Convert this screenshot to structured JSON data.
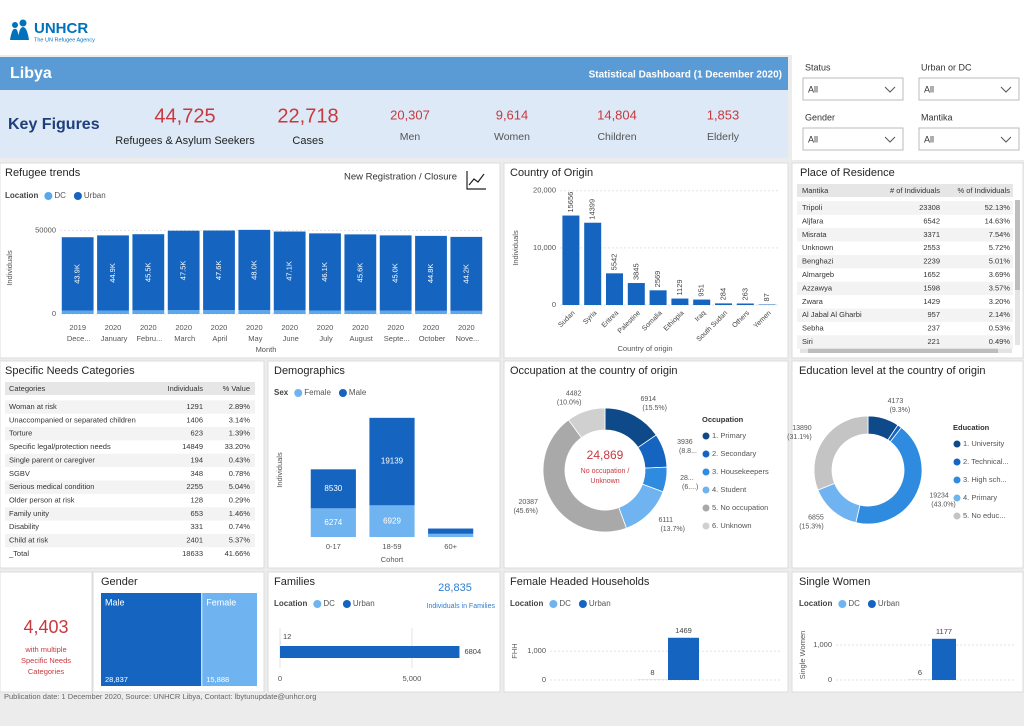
{
  "header": {
    "logo": "UNHCR",
    "logo_sub": "The UN Refugee Agency",
    "country": "Libya",
    "dashboard_title": "Statistical Dashboard (1 December 2020)"
  },
  "key_figures": {
    "title": "Key Figures",
    "items": [
      {
        "value": "44,725",
        "label": "Refugees & Asylum Seekers"
      },
      {
        "value": "22,718",
        "label": "Cases"
      },
      {
        "value": "20,307",
        "label": "Men"
      },
      {
        "value": "9,614",
        "label": "Women"
      },
      {
        "value": "14,804",
        "label": "Children"
      },
      {
        "value": "1,853",
        "label": "Elderly"
      }
    ]
  },
  "filters": [
    {
      "label": "Status",
      "value": "All"
    },
    {
      "label": "Urban or DC",
      "value": "All"
    },
    {
      "label": "Gender",
      "value": "All"
    },
    {
      "label": "Mantika",
      "value": "All"
    }
  ],
  "residence_table": {
    "columns": [
      "Mantika",
      "# of Individuals",
      "% of Individuals"
    ],
    "rows": [
      [
        "Tripoli",
        "23308",
        "52.13%"
      ],
      [
        "Aljfara",
        "6542",
        "14.63%"
      ],
      [
        "Misrata",
        "3371",
        "7.54%"
      ],
      [
        "Unknown",
        "2553",
        "5.72%"
      ],
      [
        "Benghazi",
        "2239",
        "5.01%"
      ],
      [
        "Almargeb",
        "1652",
        "3.69%"
      ],
      [
        "Azzawya",
        "1598",
        "3.57%"
      ],
      [
        "Zwara",
        "1429",
        "3.20%"
      ],
      [
        "Al Jabal Al Gharbi",
        "957",
        "2.14%"
      ],
      [
        "Sebha",
        "237",
        "0.53%"
      ],
      [
        "Siri",
        "221",
        "0.49%"
      ]
    ]
  },
  "needs_table": {
    "title": "Specific Needs Categories",
    "columns": [
      "Categories",
      "Individuals",
      "% Value"
    ],
    "rows": [
      [
        "Woman at risk",
        "1291",
        "2.89%"
      ],
      [
        "Unaccompanied or separated children",
        "1406",
        "3.14%"
      ],
      [
        "Torture",
        "623",
        "1.39%"
      ],
      [
        "Specific legal/protection needs",
        "14849",
        "33.20%"
      ],
      [
        "Single parent or caregiver",
        "194",
        "0.43%"
      ],
      [
        "SGBV",
        "348",
        "0.78%"
      ],
      [
        "Serious medical condition",
        "2255",
        "5.04%"
      ],
      [
        "Older person at risk",
        "128",
        "0.29%"
      ],
      [
        "Family unity",
        "653",
        "1.46%"
      ],
      [
        "Disability",
        "331",
        "0.74%"
      ],
      [
        "Child at risk",
        "2401",
        "5.37%"
      ],
      [
        "_Total",
        "18633",
        "41.66%"
      ]
    ]
  },
  "residence_title": "Place of Residence",
  "multiple_needs": {
    "value": "4,403",
    "label_lines": [
      "with multiple",
      "Specific Needs",
      "Categories"
    ]
  },
  "footer": "Publication date: 1 December 2020, Source: UNHCR Libya, Contact: lbytunupdate@unhcr.org",
  "chart_data": [
    {
      "type": "bar",
      "stacked": true,
      "title": "Refugee trends",
      "subtitle": "New Registration / Closure",
      "legend_title": "Location",
      "xlabel": "Month",
      "ylabel": "Individuals",
      "categories": [
        "2019 Dece...",
        "2020 January",
        "2020 Febru...",
        "2020 March",
        "2020 April",
        "2020 May",
        "2020 June",
        "2020 July",
        "2020 August",
        "2020 Septe...",
        "2020 October",
        "2020 Nove..."
      ],
      "series": [
        {
          "name": "DC",
          "color": "#5aa7ee",
          "values": [
            2000,
            2100,
            2200,
            2300,
            2300,
            2300,
            2200,
            2100,
            2000,
            2000,
            1900,
            1900
          ]
        },
        {
          "name": "Urban",
          "color": "#1565c0",
          "values": [
            43900,
            44900,
            45500,
            47500,
            47600,
            48000,
            47100,
            46100,
            45600,
            45000,
            44800,
            44200
          ],
          "value_labels": [
            "43.9K",
            "44.9K",
            "45.5K",
            "47.5K",
            "47.6K",
            "48.0K",
            "47.1K",
            "46.1K",
            "45.6K",
            "45.0K",
            "44.8K",
            "44.2K"
          ]
        }
      ],
      "ylim": [
        0,
        55000
      ],
      "yticks": [
        0,
        50000
      ],
      "grid": true
    },
    {
      "type": "bar",
      "title": "Country of Origin",
      "xlabel": "Country of origin",
      "ylabel": "Individuals",
      "categories": [
        "Sudan",
        "Syria",
        "Eritrea",
        "Palestine",
        "Somalia",
        "Ethiopia",
        "Iraq",
        "South Sudan",
        "Others",
        "Yemen"
      ],
      "values": [
        15656,
        14399,
        5542,
        3845,
        2569,
        1129,
        951,
        284,
        263,
        87
      ],
      "color": "#1565c0",
      "ylim": [
        0,
        21000
      ],
      "yticks": [
        0,
        {
          "value": 10000,
          "label": "10,000"
        },
        {
          "value": 20000,
          "label": "20,000"
        }
      ],
      "grid": true
    },
    {
      "type": "bar",
      "stacked": true,
      "title": "Demographics",
      "legend_title": "Sex",
      "xlabel": "Cohort",
      "ylabel": "Individuals",
      "categories": [
        "0-17",
        "18-59",
        "60+"
      ],
      "series": [
        {
          "name": "Female",
          "color": "#6fb4f0",
          "values": [
            6274,
            6929,
            700
          ]
        },
        {
          "name": "Male",
          "color": "#1565c0",
          "values": [
            8530,
            19139,
            1153
          ]
        }
      ],
      "ylim": [
        0,
        28000
      ]
    },
    {
      "type": "donut",
      "title": "Occupation at the country of origin",
      "legend_title": "Occupation",
      "categories": [
        "1. Primary",
        "2. Secondary",
        "3. Housekeepers",
        "4. Student",
        "5. No occupation",
        "6. Unknown"
      ],
      "values": [
        6914,
        3936,
        2895,
        6111,
        20387,
        4482
      ],
      "value_labels": [
        "6914 (15.5%)",
        "3936 (8.8...",
        "28... (6....)",
        "6111 (13.7%)",
        "20387 (45.6%)",
        "4482 (10.0%)"
      ],
      "colors": [
        "#0e4a8a",
        "#1565c0",
        "#2f8be0",
        "#6fb4f0",
        "#a9a9a9",
        "#d0d0d0"
      ],
      "center_value": "24,869",
      "center_label": [
        "No occupation /",
        "Unknown"
      ]
    },
    {
      "type": "donut",
      "title": "Education level at the country of origin",
      "legend_title": "Education",
      "categories": [
        "1. University",
        "2. Technical...",
        "3. High sch...",
        "4. Primary",
        "5. No educ..."
      ],
      "values": [
        4173,
        573,
        19234,
        6855,
        13890
      ],
      "value_labels": [
        "4173 (9.3%)",
        null,
        "19234 (43.0%)",
        "6855 (15.3%)",
        "13890 (31.1%)"
      ],
      "colors": [
        "#0e4a8a",
        "#1565c0",
        "#2f8be0",
        "#6fb4f0",
        "#c4c4c4"
      ]
    },
    {
      "type": "treemap",
      "title": "Gender",
      "categories": [
        "Male",
        "Female"
      ],
      "values": [
        28837,
        15888
      ],
      "value_labels": [
        "28,837",
        "15,888"
      ],
      "colors": [
        "#1565c0",
        "#6fb4f0"
      ]
    },
    {
      "type": "bar",
      "orientation": "horizontal",
      "title": "Families",
      "legend_title": "Location",
      "annotation_value": "28,835",
      "annotation_label": "Individuals in Families",
      "categories": [
        null
      ],
      "series": [
        {
          "name": "DC",
          "color": "#6fb4f0",
          "values": [
            12
          ]
        },
        {
          "name": "Urban",
          "color": "#1565c0",
          "values": [
            6804
          ]
        }
      ],
      "xlim": [
        0,
        8000
      ],
      "xticks": [
        0,
        {
          "value": 5000,
          "label": "5,000"
        }
      ],
      "grid": true
    },
    {
      "type": "bar",
      "title": "Female Headed Households",
      "legend_title": "Location",
      "ylabel": "FHH",
      "categories": [
        null
      ],
      "series": [
        {
          "name": "DC",
          "color": "#6fb4f0",
          "values": [
            8
          ]
        },
        {
          "name": "Urban",
          "color": "#1565c0",
          "values": [
            1469
          ]
        }
      ],
      "ylim": [
        0,
        1600
      ],
      "yticks": [
        0,
        {
          "value": 1000,
          "label": "1,000"
        }
      ],
      "grid": true
    },
    {
      "type": "bar",
      "title": "Single Women",
      "legend_title": "Location",
      "ylabel": "Single Women",
      "categories": [
        null
      ],
      "series": [
        {
          "name": "DC",
          "color": "#6fb4f0",
          "values": [
            6
          ]
        },
        {
          "name": "Urban",
          "color": "#1565c0",
          "values": [
            1177
          ]
        }
      ],
      "ylim": [
        0,
        1400
      ],
      "yticks": [
        0,
        {
          "value": 1000,
          "label": "1,000"
        }
      ],
      "grid": true
    }
  ]
}
